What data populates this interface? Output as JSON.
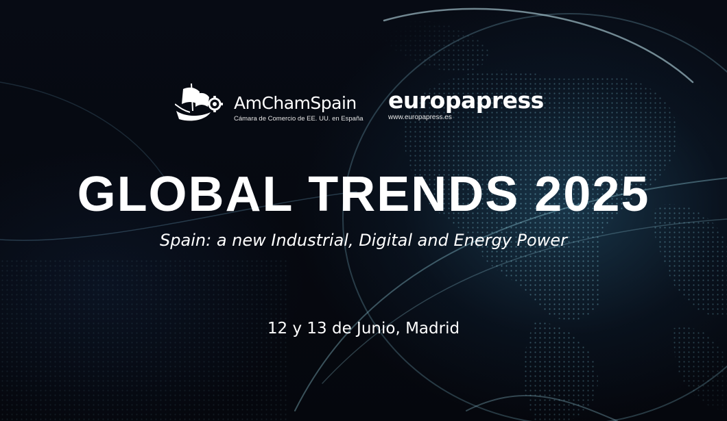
{
  "logos": {
    "amcham": {
      "name": "AmChamSpain",
      "tagline": "Cámara de Comercio de EE. UU. en España",
      "icon": "ship-gear-icon"
    },
    "europapress": {
      "name": "europapress",
      "url": "www.europapress.es"
    }
  },
  "event": {
    "title": "GLOBAL TRENDS 2025",
    "subtitle": "Spain: a new Industrial, Digital and Energy Power",
    "date": "12 y 13 de Junio, Madrid"
  },
  "colors": {
    "background": "#05070d",
    "globe_glow": "#4a9bb5",
    "text": "#ffffff"
  }
}
